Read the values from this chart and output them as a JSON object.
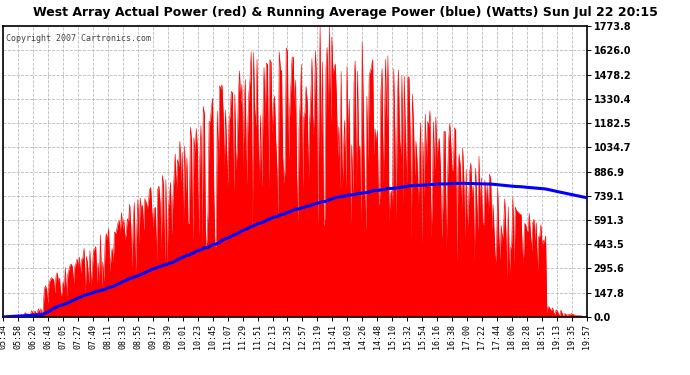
{
  "title": "West Array Actual Power (red) & Running Average Power (blue) (Watts) Sun Jul 22 20:15",
  "copyright": "Copyright 2007 Cartronics.com",
  "yticks": [
    0.0,
    147.8,
    295.6,
    443.5,
    591.3,
    739.1,
    886.9,
    1034.7,
    1182.5,
    1330.4,
    1478.2,
    1626.0,
    1773.8
  ],
  "ymax": 1773.8,
  "ymin": 0.0,
  "xtick_labels": [
    "05:34",
    "05:58",
    "06:20",
    "06:43",
    "07:05",
    "07:27",
    "07:49",
    "08:11",
    "08:33",
    "08:55",
    "09:17",
    "09:39",
    "10:01",
    "10:23",
    "10:45",
    "11:07",
    "11:29",
    "11:51",
    "12:13",
    "12:35",
    "12:57",
    "13:19",
    "13:41",
    "14:03",
    "14:26",
    "14:48",
    "15:10",
    "15:32",
    "15:54",
    "16:16",
    "16:38",
    "17:00",
    "17:22",
    "17:44",
    "18:06",
    "18:28",
    "18:51",
    "19:13",
    "19:35",
    "19:57"
  ],
  "bg_color": "#ffffff",
  "plot_bg_color": "#ffffff",
  "title_color": "#000000",
  "grid_color": "#aaaaaa",
  "actual_color": "#ff0000",
  "avg_color": "#0000ff",
  "text_color": "#000000",
  "tick_color": "#000000",
  "copyright_color": "#444444"
}
